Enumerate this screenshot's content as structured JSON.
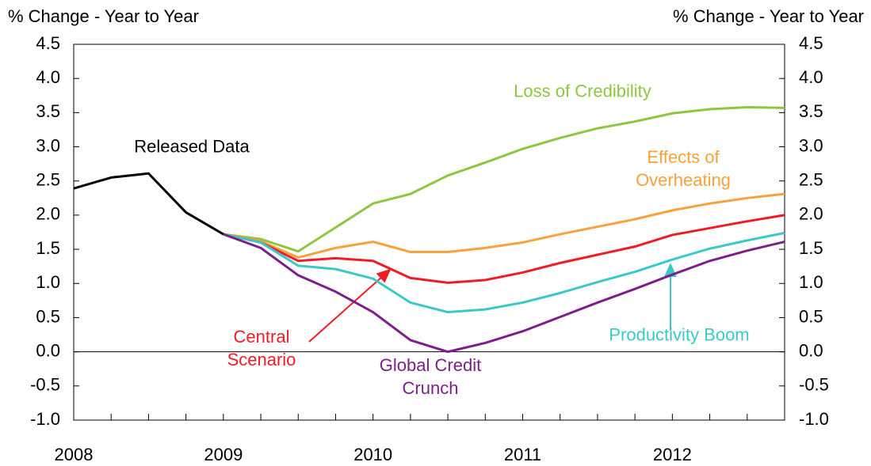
{
  "chart_data": {
    "type": "line",
    "y_label": "% Change - Year to Year",
    "y2_label": "% Change - Year to Year",
    "categories": [
      "2008",
      null,
      null,
      null,
      "2009",
      null,
      null,
      null,
      "2010",
      null,
      null,
      null,
      "2011",
      null,
      null,
      null,
      "2012",
      null,
      null,
      null
    ],
    "ylim": [
      -1.0,
      4.5
    ],
    "yticks": [
      {
        "value": -1.0,
        "label": "-1.0"
      },
      {
        "value": -0.5,
        "label": "-0.5"
      },
      {
        "value": 0.0,
        "label": "0.0"
      },
      {
        "value": 0.5,
        "label": "0.5"
      },
      {
        "value": 1.0,
        "label": "1.0"
      },
      {
        "value": 1.5,
        "label": "1.5"
      },
      {
        "value": 2.0,
        "label": "2.0"
      },
      {
        "value": 2.5,
        "label": "2.5"
      },
      {
        "value": 3.0,
        "label": "3.0"
      },
      {
        "value": 3.5,
        "label": "3.5"
      },
      {
        "value": 4.0,
        "label": "4.0"
      },
      {
        "value": 4.5,
        "label": "4.5"
      }
    ],
    "y2lim": [
      -1.0,
      4.5
    ],
    "y2ticks": [
      {
        "value": -1.0,
        "label": "-1.0"
      },
      {
        "value": -0.5,
        "label": "-0.5"
      },
      {
        "value": 0.0,
        "label": "0.0"
      },
      {
        "value": 0.5,
        "label": "0.5"
      },
      {
        "value": 1.0,
        "label": "1.0"
      },
      {
        "value": 1.5,
        "label": "1.5"
      },
      {
        "value": 2.0,
        "label": "2.0"
      },
      {
        "value": 2.5,
        "label": "2.5"
      },
      {
        "value": 3.0,
        "label": "3.0"
      },
      {
        "value": 3.5,
        "label": "3.5"
      },
      {
        "value": 4.0,
        "label": "4.0"
      },
      {
        "value": 4.5,
        "label": "4.5"
      }
    ],
    "grid": false,
    "series": [
      {
        "name": "Loss of Credibility",
        "color": "#8dc63f",
        "values": [
          null,
          null,
          null,
          null,
          1.72,
          1.65,
          1.47,
          1.82,
          2.17,
          2.31,
          2.58,
          2.77,
          2.97,
          3.13,
          3.27,
          3.37,
          3.49,
          3.55,
          3.58,
          3.57
        ]
      },
      {
        "name": "Effects of Overheating",
        "color": "#f7a23b",
        "values": [
          null,
          null,
          null,
          null,
          1.72,
          1.62,
          1.38,
          1.52,
          1.61,
          1.46,
          1.46,
          1.52,
          1.6,
          1.72,
          1.83,
          1.94,
          2.07,
          2.17,
          2.25,
          2.31
        ]
      },
      {
        "name": "Central Scenario",
        "color": "#ee1c25",
        "values": [
          null,
          null,
          null,
          null,
          1.72,
          1.6,
          1.33,
          1.37,
          1.33,
          1.08,
          1.01,
          1.05,
          1.16,
          1.3,
          1.42,
          1.54,
          1.71,
          1.81,
          1.91,
          2.0
        ]
      },
      {
        "name": "Productivity Boom",
        "color": "#3cc8c8",
        "values": [
          null,
          null,
          null,
          null,
          1.72,
          1.6,
          1.26,
          1.21,
          1.07,
          0.72,
          0.58,
          0.62,
          0.72,
          0.86,
          1.02,
          1.17,
          1.35,
          1.51,
          1.63,
          1.74
        ]
      },
      {
        "name": "Global Credit Crunch",
        "color": "#7b1f8a",
        "values": [
          null,
          null,
          null,
          null,
          1.72,
          1.52,
          1.12,
          0.88,
          0.58,
          0.17,
          0.0,
          0.13,
          0.3,
          0.51,
          0.72,
          0.92,
          1.13,
          1.33,
          1.48,
          1.61
        ]
      },
      {
        "name": "Released Data",
        "color": "#000000",
        "values": [
          2.39,
          2.55,
          2.61,
          2.04,
          1.72,
          null,
          null,
          null,
          null,
          null,
          null,
          null,
          null,
          null,
          null,
          null,
          null,
          null,
          null,
          null
        ]
      }
    ]
  }
}
